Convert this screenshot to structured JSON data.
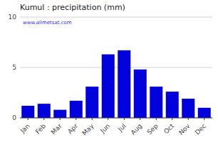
{
  "chart_data": {
    "type": "bar",
    "title": "Kumul : precipitation (mm)",
    "categories": [
      "Jan",
      "Feb",
      "Mar",
      "Apr",
      "May",
      "Jun",
      "Jul",
      "Aug",
      "Sep",
      "Oct",
      "Nov",
      "Dec"
    ],
    "values": [
      1.2,
      1.4,
      0.8,
      1.7,
      3.1,
      6.3,
      6.7,
      4.8,
      3.1,
      2.6,
      1.9,
      1.0
    ],
    "color": "#0000dd",
    "ylim": [
      0,
      10
    ],
    "yticks": [
      0,
      5,
      10
    ],
    "grid": true,
    "annotations": [
      "www.allmetsat.com"
    ]
  }
}
